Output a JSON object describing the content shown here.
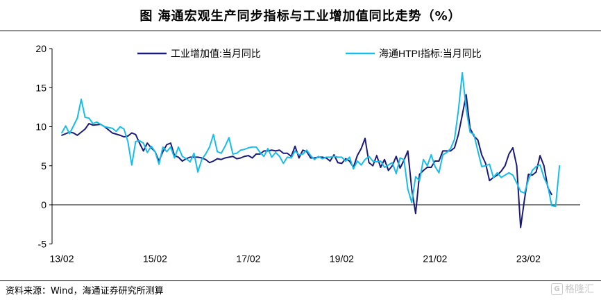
{
  "title": "图 海通宏观生产同步指标与工业增加值同比走势（%）",
  "source": "资料来源：Wind，海通证券研究所测算",
  "watermark": "格隆汇",
  "chart_data": {
    "type": "line",
    "title": "图 海通宏观生产同步指标与工业增加值同比走势（%）",
    "ylim": [
      -5,
      20
    ],
    "yticks": [
      -5,
      0,
      5,
      10,
      15,
      20
    ],
    "xticks": [
      {
        "label": "13/02",
        "x": 0
      },
      {
        "label": "15/02",
        "x": 24
      },
      {
        "label": "17/02",
        "x": 48
      },
      {
        "label": "19/02",
        "x": 72
      },
      {
        "label": "21/02",
        "x": 96
      },
      {
        "label": "23/02",
        "x": 120
      }
    ],
    "legend": "top",
    "grid": false,
    "series": [
      {
        "name": "工业增加值:当月同比",
        "color": "#1a1a7a",
        "points": [
          [
            0,
            8.9
          ],
          [
            2,
            9.3
          ],
          [
            3,
            9.2
          ],
          [
            4,
            8.9
          ],
          [
            6,
            9.7
          ],
          [
            7,
            10.4
          ],
          [
            8,
            10.2
          ],
          [
            10,
            10.3
          ],
          [
            11,
            10.0
          ],
          [
            12,
            9.6
          ],
          [
            13,
            9.2
          ],
          [
            15,
            8.9
          ],
          [
            16,
            8.7
          ],
          [
            17,
            8.8
          ],
          [
            18,
            9.2
          ],
          [
            19,
            9.0
          ],
          [
            20,
            7.9
          ],
          [
            21,
            6.9
          ],
          [
            22,
            7.9
          ],
          [
            23,
            7.3
          ],
          [
            24,
            6.8
          ],
          [
            25,
            5.6
          ],
          [
            26,
            6.8
          ],
          [
            27,
            7.7
          ],
          [
            28,
            7.9
          ],
          [
            29,
            6.3
          ],
          [
            30,
            6.1
          ],
          [
            31,
            5.6
          ],
          [
            32,
            5.9
          ],
          [
            33,
            6.1
          ],
          [
            34,
            6.1
          ],
          [
            35,
            6.1
          ],
          [
            36,
            6.0
          ],
          [
            37,
            5.8
          ],
          [
            38,
            5.4
          ],
          [
            39,
            5.6
          ],
          [
            40,
            5.9
          ],
          [
            41,
            5.8
          ],
          [
            42,
            6.0
          ],
          [
            43,
            6.1
          ],
          [
            44,
            6.2
          ],
          [
            45,
            5.9
          ],
          [
            46,
            6.0
          ],
          [
            47,
            6.2
          ],
          [
            48,
            6.3
          ],
          [
            49,
            6.0
          ],
          [
            50,
            6.5
          ],
          [
            51,
            6.5
          ],
          [
            52,
            6.9
          ],
          [
            53,
            6.9
          ],
          [
            54,
            7.0
          ],
          [
            55,
            6.9
          ],
          [
            56,
            7.0
          ],
          [
            57,
            6.6
          ],
          [
            58,
            6.6
          ],
          [
            59,
            6.2
          ],
          [
            60,
            7.5
          ],
          [
            61,
            6.0
          ],
          [
            62,
            7.0
          ],
          [
            63,
            6.8
          ],
          [
            64,
            6.0
          ],
          [
            65,
            6.0
          ],
          [
            66,
            6.1
          ],
          [
            67,
            6.1
          ],
          [
            68,
            6.0
          ],
          [
            69,
            5.6
          ],
          [
            70,
            6.4
          ],
          [
            71,
            5.4
          ],
          [
            72,
            5.3
          ],
          [
            73,
            5.9
          ],
          [
            74,
            5.6
          ],
          [
            75,
            4.8
          ],
          [
            76,
            6.3
          ],
          [
            77,
            7.2
          ],
          [
            78,
            8.5
          ],
          [
            79,
            5.4
          ],
          [
            80,
            5.0
          ],
          [
            81,
            6.3
          ],
          [
            82,
            4.8
          ],
          [
            83,
            5.8
          ],
          [
            84,
            4.4
          ],
          [
            85,
            5.0
          ],
          [
            86,
            6.2
          ],
          [
            87,
            4.7
          ],
          [
            88,
            5.7
          ],
          [
            89,
            6.9
          ],
          [
            90,
            2.0
          ],
          [
            91,
            -1.1
          ],
          [
            92,
            3.9
          ],
          [
            93,
            4.4
          ],
          [
            94,
            4.8
          ],
          [
            95,
            4.8
          ],
          [
            96,
            5.6
          ],
          [
            97,
            5.6
          ],
          [
            98,
            6.9
          ],
          [
            99,
            6.9
          ],
          [
            100,
            6.9
          ],
          [
            101,
            7.3
          ],
          [
            102,
            9.0
          ],
          [
            103,
            11.5
          ],
          [
            104,
            14.1
          ],
          [
            105,
            9.8
          ],
          [
            106,
            8.8
          ],
          [
            107,
            8.3
          ],
          [
            108,
            6.4
          ],
          [
            109,
            5.3
          ],
          [
            110,
            3.1
          ],
          [
            111,
            3.5
          ],
          [
            112,
            3.8
          ],
          [
            113,
            4.3
          ],
          [
            114,
            5.0
          ],
          [
            115,
            6.5
          ],
          [
            116,
            7.3
          ],
          [
            117,
            5.0
          ],
          [
            118,
            -2.9
          ],
          [
            119,
            0.7
          ],
          [
            120,
            3.9
          ],
          [
            121,
            3.8
          ],
          [
            122,
            4.2
          ],
          [
            123,
            6.3
          ],
          [
            124,
            5.0
          ],
          [
            125,
            2.2
          ],
          [
            126,
            1.3
          ]
        ]
      },
      {
        "name": "海通HTPI指标:当月同比",
        "color": "#17bde8",
        "points": [
          [
            0,
            9.2
          ],
          [
            1,
            10.1
          ],
          [
            2,
            9.1
          ],
          [
            3,
            10.1
          ],
          [
            4,
            11.1
          ],
          [
            5,
            13.5
          ],
          [
            6,
            11.2
          ],
          [
            7,
            11.1
          ],
          [
            8,
            10.4
          ],
          [
            9,
            10.6
          ],
          [
            10,
            10.3
          ],
          [
            11,
            10.0
          ],
          [
            12,
            9.9
          ],
          [
            13,
            9.8
          ],
          [
            14,
            9.4
          ],
          [
            15,
            10.0
          ],
          [
            16,
            9.7
          ],
          [
            17,
            8.1
          ],
          [
            18,
            5.1
          ],
          [
            19,
            8.1
          ],
          [
            20,
            8.2
          ],
          [
            21,
            7.9
          ],
          [
            22,
            6.7
          ],
          [
            23,
            7.5
          ],
          [
            24,
            6.8
          ],
          [
            25,
            5.2
          ],
          [
            26,
            7.4
          ],
          [
            27,
            6.8
          ],
          [
            28,
            7.4
          ],
          [
            29,
            6.0
          ],
          [
            30,
            7.4
          ],
          [
            31,
            6.2
          ],
          [
            32,
            5.9
          ],
          [
            33,
            5.5
          ],
          [
            34,
            6.6
          ],
          [
            35,
            4.2
          ],
          [
            36,
            5.8
          ],
          [
            37,
            6.5
          ],
          [
            38,
            7.4
          ],
          [
            39,
            9.0
          ],
          [
            40,
            6.8
          ],
          [
            41,
            6.6
          ],
          [
            42,
            7.5
          ],
          [
            43,
            8.6
          ],
          [
            44,
            6.5
          ],
          [
            45,
            6.6
          ],
          [
            46,
            7.0
          ],
          [
            47,
            7.1
          ],
          [
            48,
            7.3
          ],
          [
            49,
            7.4
          ],
          [
            50,
            7.4
          ],
          [
            51,
            6.7
          ],
          [
            52,
            6.2
          ],
          [
            53,
            7.2
          ],
          [
            54,
            6.1
          ],
          [
            55,
            6.7
          ],
          [
            56,
            6.2
          ],
          [
            57,
            5.3
          ],
          [
            58,
            6.1
          ],
          [
            59,
            6.0
          ],
          [
            60,
            6.9
          ],
          [
            61,
            6.4
          ],
          [
            62,
            6.5
          ],
          [
            63,
            7.0
          ],
          [
            64,
            6.3
          ],
          [
            65,
            5.8
          ],
          [
            66,
            6.2
          ],
          [
            67,
            5.9
          ],
          [
            68,
            6.1
          ],
          [
            69,
            6.1
          ],
          [
            70,
            6.2
          ],
          [
            71,
            6.1
          ],
          [
            72,
            6.1
          ],
          [
            73,
            5.6
          ],
          [
            74,
            6.1
          ],
          [
            75,
            4.6
          ],
          [
            76,
            5.6
          ],
          [
            77,
            5.1
          ],
          [
            78,
            5.8
          ],
          [
            79,
            6.2
          ],
          [
            80,
            5.6
          ],
          [
            81,
            5.5
          ],
          [
            82,
            5.6
          ],
          [
            83,
            4.8
          ],
          [
            84,
            5.1
          ],
          [
            85,
            5.4
          ],
          [
            86,
            4.0
          ],
          [
            87,
            6.0
          ],
          [
            88,
            5.8
          ],
          [
            89,
            2.0
          ],
          [
            90,
            0.3
          ],
          [
            91,
            3.6
          ],
          [
            92,
            3.1
          ],
          [
            93,
            5.8
          ],
          [
            94,
            5.0
          ],
          [
            95,
            6.4
          ],
          [
            96,
            4.9
          ],
          [
            97,
            4.1
          ],
          [
            98,
            6.4
          ],
          [
            99,
            6.7
          ],
          [
            100,
            7.2
          ],
          [
            101,
            8.4
          ],
          [
            102,
            12.1
          ],
          [
            103,
            16.9
          ],
          [
            104,
            12.3
          ],
          [
            105,
            9.3
          ],
          [
            106,
            9.0
          ],
          [
            107,
            6.9
          ],
          [
            108,
            4.9
          ],
          [
            109,
            5.0
          ],
          [
            110,
            5.2
          ],
          [
            111,
            3.5
          ],
          [
            112,
            4.1
          ],
          [
            113,
            3.5
          ],
          [
            114,
            3.8
          ],
          [
            115,
            4.1
          ],
          [
            116,
            3.8
          ],
          [
            117,
            2.8
          ],
          [
            118,
            1.7
          ],
          [
            119,
            1.5
          ],
          [
            120,
            3.2
          ],
          [
            121,
            4.4
          ],
          [
            122,
            4.9
          ],
          [
            123,
            5.1
          ],
          [
            124,
            3.5
          ],
          [
            125,
            2.4
          ],
          [
            126,
            -0.1
          ],
          [
            127,
            -0.2
          ],
          [
            128,
            5.0
          ]
        ]
      }
    ]
  }
}
